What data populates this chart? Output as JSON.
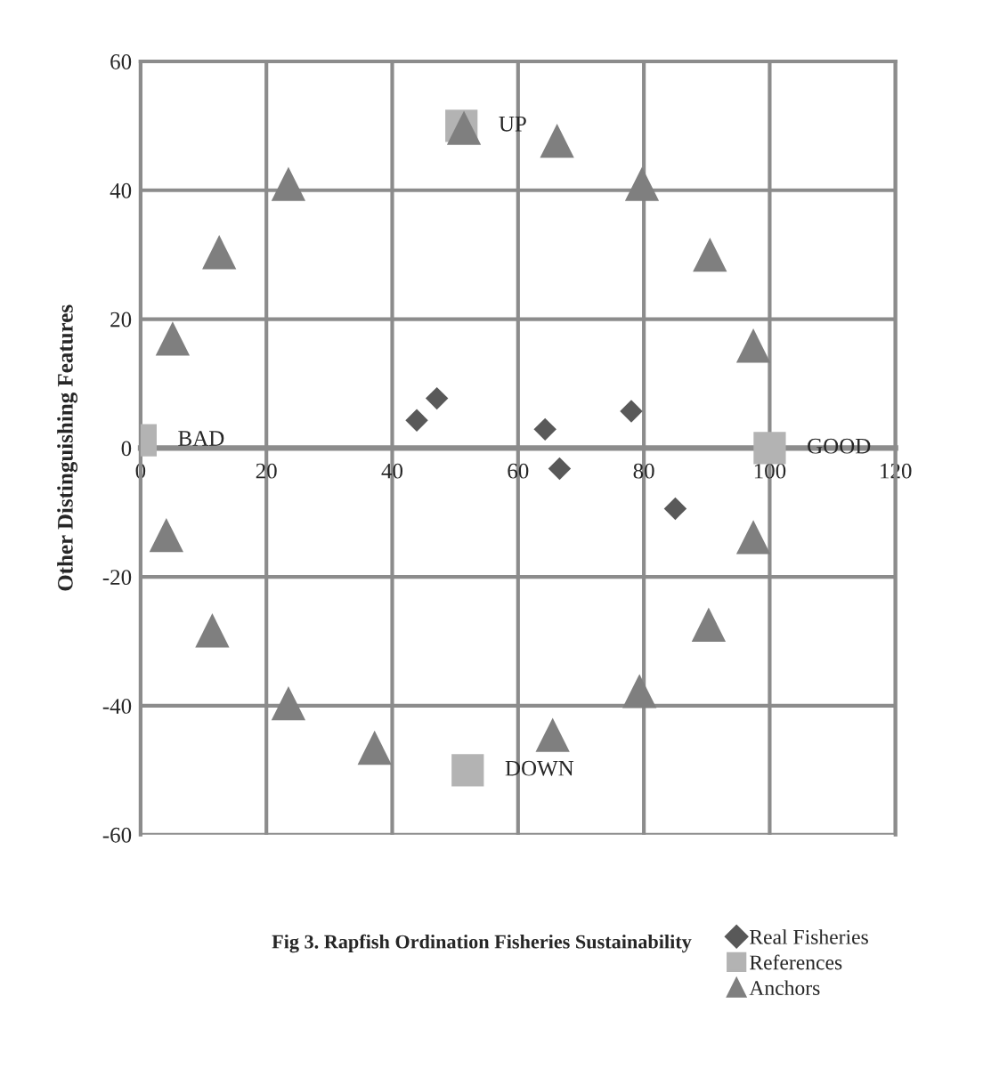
{
  "chart_data": {
    "type": "scatter",
    "title": "Fig 3. Rapfish Ordination Fisheries Sustainability",
    "ylabel": "Other Distinguishing Features",
    "xlim": [
      0,
      120
    ],
    "xticks": [
      0,
      20,
      40,
      60,
      80,
      100,
      120
    ],
    "ylim": [
      -60,
      60
    ],
    "yticks": [
      -60,
      -40,
      -20,
      0,
      20,
      40,
      60
    ],
    "grid": true,
    "legend": "bottom right",
    "series": [
      {
        "name": "Real Fisheries",
        "color": "#595959",
        "marker": "diamond",
        "x": [
          43.9,
          47.1,
          64.3,
          66.6,
          78,
          85
        ],
        "values": [
          4.3,
          7.7,
          2.9,
          -3.2,
          5.7,
          -9.4
        ]
      },
      {
        "name": "References",
        "color": "#b3b3b3",
        "marker": "square",
        "x": [
          0,
          51,
          100,
          52
        ],
        "values": [
          1.2,
          50,
          0,
          -50
        ]
      },
      {
        "name": "Anchors",
        "color": "#7f7f7f",
        "marker": "triangle",
        "x": [
          51.4,
          66.2,
          23.5,
          12.5,
          5.1,
          79.7,
          90.5,
          97.4,
          4.1,
          11.4,
          23.5,
          37.2,
          65.5,
          97.4,
          90.3,
          79.3
        ],
        "values": [
          49.7,
          47.7,
          41,
          30.4,
          17,
          41,
          30,
          15.9,
          -13.5,
          -28.3,
          -39.6,
          -46.5,
          -44.5,
          -13.8,
          -27.4,
          -37.7
        ]
      }
    ],
    "annotations": [
      {
        "text": "BAD",
        "x": 0,
        "y": 1.2
      },
      {
        "text": "UP",
        "x": 51,
        "y": 50
      },
      {
        "text": "GOOD",
        "x": 100,
        "y": 0
      },
      {
        "text": "DOWN",
        "x": 52,
        "y": -50
      }
    ]
  }
}
